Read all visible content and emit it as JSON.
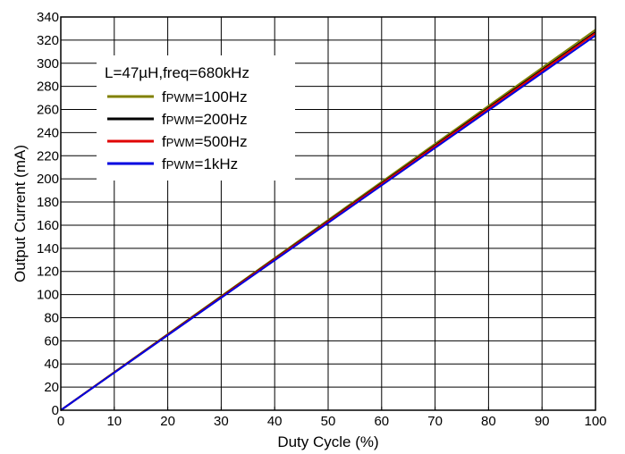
{
  "chart_data": {
    "type": "line",
    "xlabel": "Duty Cycle (%)",
    "ylabel": "Output Current (mA)",
    "xlim": [
      0,
      100
    ],
    "ylim": [
      0,
      340
    ],
    "xticks": [
      0,
      10,
      20,
      30,
      40,
      50,
      60,
      70,
      80,
      90,
      100
    ],
    "yticks": [
      0,
      20,
      40,
      60,
      80,
      100,
      120,
      140,
      160,
      180,
      200,
      220,
      240,
      260,
      280,
      300,
      320,
      340
    ],
    "grid": true,
    "legend": {
      "placement": "top-left",
      "title": "L=47µH,freq=680kHz"
    },
    "series": [
      {
        "name": "fPWM=100Hz",
        "name_parts": {
          "main": "f",
          "sub": "PWM",
          "rest": "=100Hz"
        },
        "color": "#808000",
        "x": [
          0,
          100
        ],
        "y": [
          0,
          329
        ]
      },
      {
        "name": "fPWM=200Hz",
        "name_parts": {
          "main": "f",
          "sub": "PWM",
          "rest": "=200Hz"
        },
        "color": "#000000",
        "x": [
          0,
          100
        ],
        "y": [
          0,
          327
        ]
      },
      {
        "name": "fPWM=500Hz",
        "name_parts": {
          "main": "f",
          "sub": "PWM",
          "rest": "=500Hz"
        },
        "color": "#e00000",
        "x": [
          0,
          100
        ],
        "y": [
          0,
          326
        ]
      },
      {
        "name": "fPWM=1kHz",
        "name_parts": {
          "main": "f",
          "sub": "PWM",
          "rest": "=1kHz"
        },
        "color": "#0000e0",
        "x": [
          0,
          100
        ],
        "y": [
          0,
          324
        ]
      }
    ]
  }
}
